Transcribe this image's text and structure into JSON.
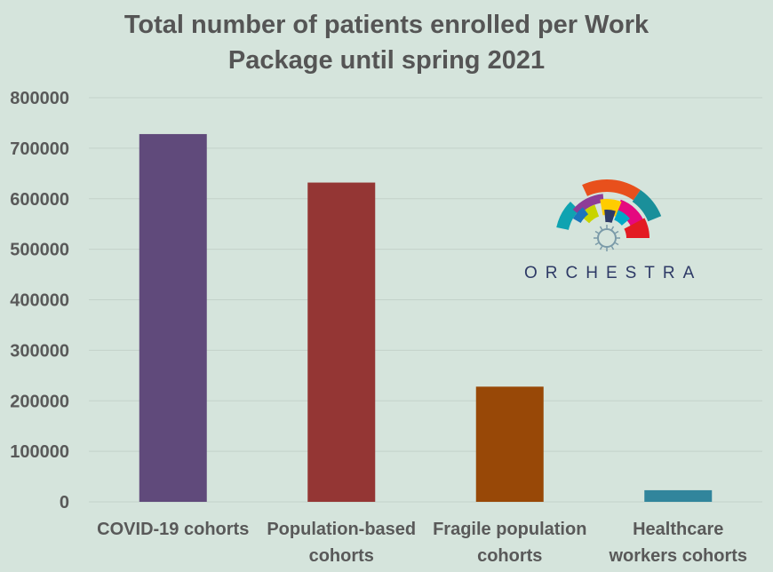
{
  "chart_data": {
    "type": "bar",
    "title_lines": [
      "Total number of patients enrolled per Work",
      "Package until spring 2021"
    ],
    "categories": [
      [
        "COVID-19 cohorts"
      ],
      [
        "Population-based",
        "cohorts"
      ],
      [
        "Fragile population",
        "cohorts"
      ],
      [
        "Healthcare",
        "workers cohorts"
      ]
    ],
    "values": [
      728000,
      632000,
      228000,
      23000
    ],
    "colors": [
      "#604a7b",
      "#943634",
      "#984807",
      "#31859c"
    ],
    "ylim": [
      0,
      800000
    ],
    "yticks": [
      "0",
      "100000",
      "200000",
      "300000",
      "400000",
      "500000",
      "600000",
      "700000",
      "800000"
    ],
    "grid": true,
    "xlabel": "",
    "ylabel": ""
  },
  "logo": {
    "text": "ORCHESTRA",
    "colors": [
      "#e8501c",
      "#8e3c97",
      "#1a8f9a",
      "#e5097f",
      "#ffcc00",
      "#1c75bc",
      "#2e3a66",
      "#c8d400",
      "#00a9c7",
      "#e31b23",
      "#0fa3b1"
    ]
  }
}
